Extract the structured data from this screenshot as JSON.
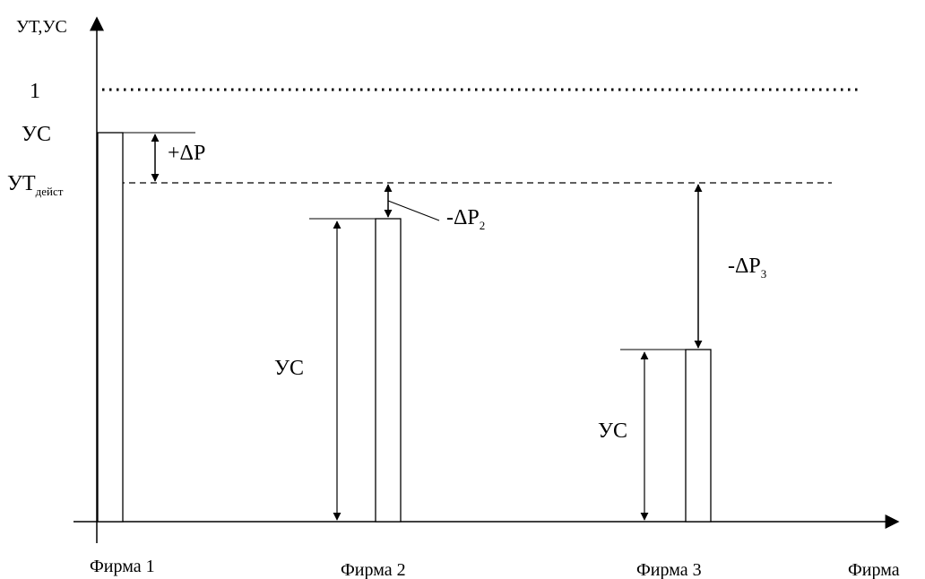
{
  "axes": {
    "y_label": "УТ,УС",
    "x_label": "Фирма",
    "level_one_label": "1",
    "uc_label": "УС",
    "ut_label_main": "УТ",
    "ut_label_sub": "дейст"
  },
  "firms": [
    {
      "label": "Фирма 1"
    },
    {
      "label": "Фирма 2"
    },
    {
      "label": "Фирма 3"
    }
  ],
  "annotations": {
    "delta_p": "+ΔP",
    "delta_p2_main": "-ΔP",
    "delta_p2_sub": "2",
    "delta_p3_main": "-ΔP",
    "delta_p3_sub": "3",
    "uc_firm2": "УС",
    "uc_firm3": "УС"
  }
}
